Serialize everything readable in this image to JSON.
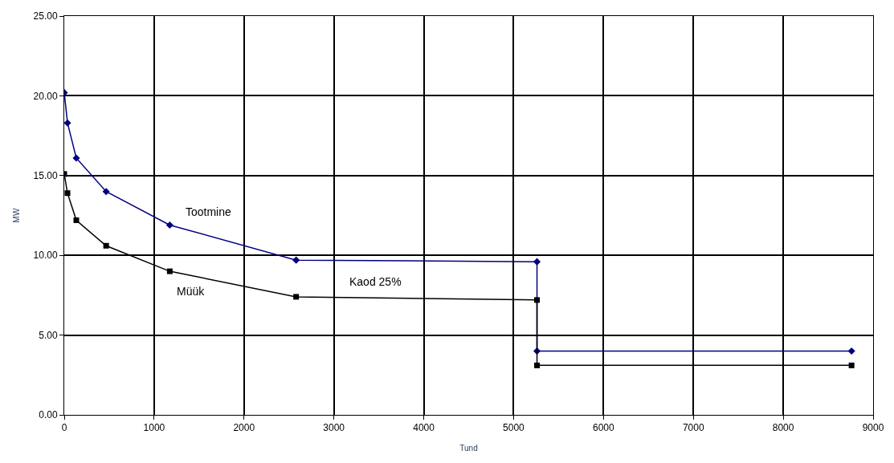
{
  "chart_data": {
    "type": "line",
    "xlabel": "Tund",
    "ylabel": "MW",
    "series": [
      {
        "color": "#000080",
        "marker": "diamond",
        "x": [
          0,
          36,
          134,
          466,
          1174,
          2580,
          5260,
          5260,
          8760
        ],
        "values": [
          20.2,
          18.3,
          16.1,
          14.0,
          11.9,
          9.7,
          9.6,
          4.0,
          4.0
        ]
      },
      {
        "color": "#000000",
        "marker": "square",
        "x": [
          0,
          36,
          134,
          466,
          1174,
          2580,
          5260,
          5260,
          8760
        ],
        "values": [
          15.1,
          13.9,
          12.2,
          10.6,
          9.0,
          7.4,
          7.2,
          3.1,
          3.1
        ]
      }
    ],
    "annotations": [
      "Tootmine",
      "Kaod 25%",
      "Müük"
    ],
    "xlim": [
      0,
      9000
    ],
    "xticks": [
      0,
      1000,
      2000,
      3000,
      4000,
      5000,
      6000,
      7000,
      8000,
      9000
    ],
    "ylim": [
      0,
      25
    ],
    "yticks": [
      {
        "value": 0,
        "label": "0.00"
      },
      {
        "value": 5,
        "label": "5.00"
      },
      {
        "value": 10,
        "label": "10.00"
      },
      {
        "value": 15,
        "label": "15.00"
      },
      {
        "value": 20,
        "label": "20.00"
      },
      {
        "value": 25,
        "label": "25.00"
      }
    ],
    "grid": true,
    "legend": false,
    "line_style": "solid"
  }
}
